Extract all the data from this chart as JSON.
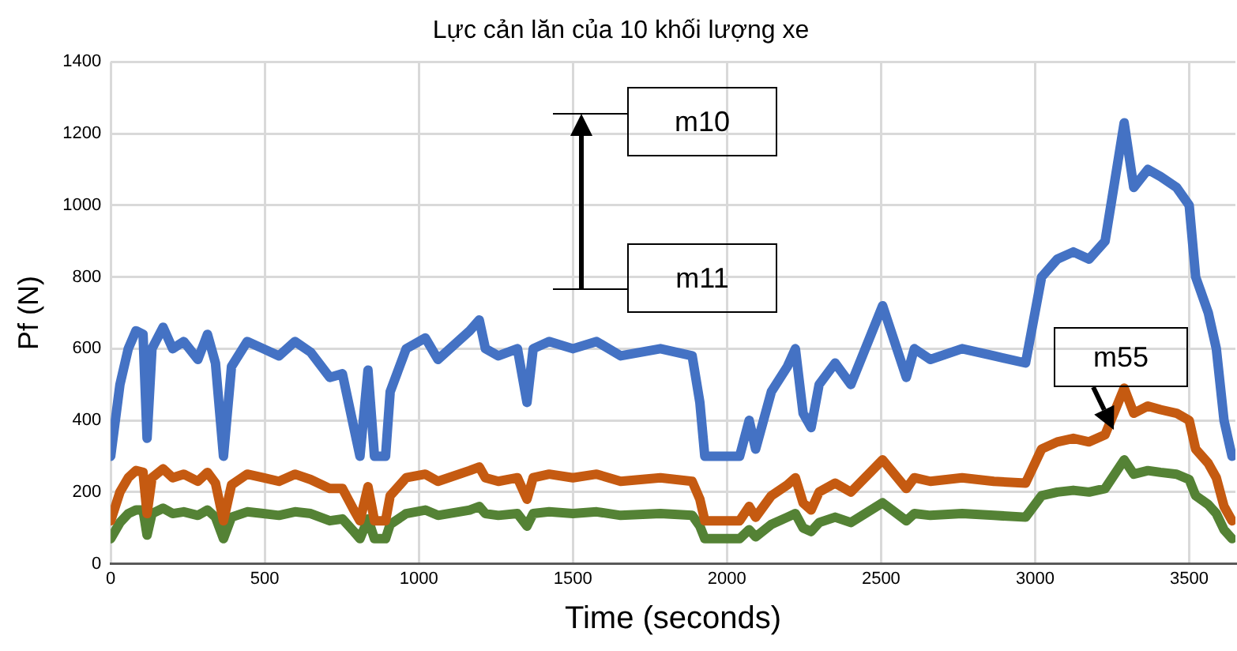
{
  "chart_data": {
    "type": "line",
    "title": "Lực cản lăn của 10 khối lượng xe",
    "xlabel": "Time (seconds)",
    "ylabel": "Pf (N)",
    "x": [
      0,
      30,
      57,
      82,
      105,
      118,
      134,
      170,
      201,
      237,
      283,
      314,
      340,
      366,
      392,
      443,
      495,
      546,
      598,
      649,
      711,
      752,
      789,
      809,
      835,
      856,
      892,
      907,
      959,
      1021,
      1062,
      1165,
      1196,
      1216,
      1258,
      1320,
      1351,
      1371,
      1423,
      1500,
      1577,
      1655,
      1784,
      1887,
      1912,
      1928,
      2041,
      2072,
      2093,
      2144,
      2196,
      2222,
      2247,
      2273,
      2299,
      2351,
      2402,
      2505,
      2582,
      2608,
      2660,
      2763,
      2866,
      2969,
      3021,
      3072,
      3124,
      3175,
      3227,
      3289,
      3320,
      3366,
      3407,
      3459,
      3500,
      3521,
      3562,
      3588,
      3613,
      3639
    ],
    "series": [
      {
        "color": "#4472c4",
        "values": [
          300,
          500,
          600,
          650,
          640,
          350,
          600,
          660,
          600,
          620,
          570,
          640,
          560,
          300,
          550,
          620,
          600,
          580,
          620,
          590,
          520,
          530,
          380,
          300,
          540,
          300,
          300,
          480,
          600,
          630,
          570,
          650,
          680,
          600,
          580,
          600,
          450,
          600,
          620,
          600,
          620,
          580,
          600,
          580,
          450,
          300,
          300,
          400,
          320,
          480,
          550,
          600,
          420,
          380,
          500,
          560,
          500,
          720,
          520,
          600,
          570,
          600,
          580,
          560,
          800,
          850,
          870,
          850,
          900,
          1230,
          1050,
          1100,
          1080,
          1050,
          1000,
          800,
          700,
          600,
          400,
          300
        ]
      },
      {
        "color": "#c55a11",
        "values": [
          120,
          200,
          240,
          260,
          255,
          140,
          240,
          265,
          240,
          250,
          230,
          255,
          225,
          120,
          220,
          250,
          240,
          230,
          250,
          235,
          210,
          210,
          150,
          120,
          215,
          120,
          120,
          190,
          240,
          250,
          230,
          260,
          270,
          240,
          230,
          240,
          180,
          240,
          250,
          240,
          250,
          230,
          240,
          230,
          180,
          120,
          120,
          160,
          130,
          190,
          220,
          240,
          170,
          150,
          200,
          225,
          200,
          290,
          210,
          240,
          230,
          240,
          230,
          225,
          320,
          340,
          350,
          340,
          360,
          490,
          420,
          440,
          430,
          420,
          400,
          320,
          280,
          240,
          160,
          120
        ]
      },
      {
        "color": "#548235",
        "values": [
          70,
          115,
          140,
          150,
          150,
          80,
          140,
          155,
          140,
          145,
          135,
          150,
          130,
          70,
          130,
          145,
          140,
          135,
          145,
          140,
          120,
          125,
          90,
          70,
          125,
          70,
          70,
          110,
          140,
          150,
          135,
          150,
          160,
          140,
          135,
          140,
          105,
          140,
          145,
          140,
          145,
          135,
          140,
          135,
          105,
          70,
          70,
          95,
          75,
          110,
          130,
          140,
          100,
          90,
          115,
          130,
          115,
          170,
          120,
          140,
          135,
          140,
          135,
          130,
          190,
          200,
          205,
          200,
          210,
          290,
          250,
          260,
          255,
          250,
          235,
          190,
          165,
          140,
          95,
          70
        ]
      }
    ],
    "xlim": [
      0,
      3650
    ],
    "xticks": [
      0,
      500,
      1000,
      1500,
      2000,
      2500,
      3000,
      3500
    ],
    "ylim": [
      0,
      1400
    ],
    "yticks": [
      0,
      200,
      400,
      600,
      800,
      1000,
      1200,
      1400
    ],
    "grid": true,
    "legend": false,
    "marker": "none",
    "line_style": "solid",
    "annotations": [
      "m10",
      "m11",
      "m55"
    ]
  }
}
